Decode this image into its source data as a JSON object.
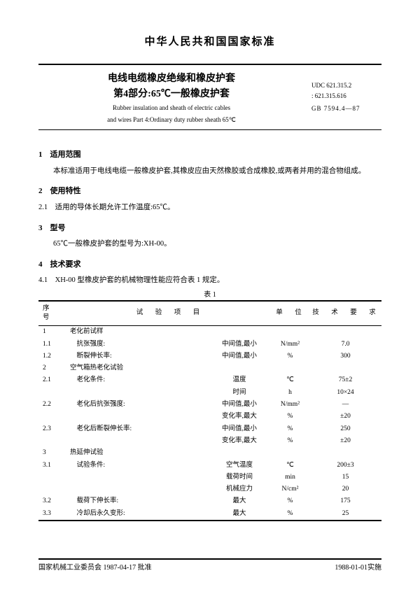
{
  "header": {
    "org": "中华人民共和国国家标准",
    "title_cn_1": "电线电缆橡皮绝缘和橡皮护套",
    "title_cn_2": "第4部分:65℃一般橡皮护套",
    "title_en_1": "Rubber insulation and sheath of electric cables",
    "title_en_2": "and wires Part 4:Ordinary duty rubber sheath 65℃",
    "udc_1": "UDC 621.315.2",
    "udc_2": ": 621.315.616",
    "gb": "GB 7594.4—87"
  },
  "sections": {
    "s1_title": "1　适用范围",
    "s1_para": "本标准适用于电线电缆一般橡皮护套,其橡皮应由天然橡胶或合成橡胶,或两者并用的混合物组成。",
    "s2_title": "2　使用特性",
    "s21": "2.1　适用的导体长期允许工作温度:65℃。",
    "s3_title": "3　型号",
    "s3_para": "65℃一般橡皮护套的型号为:XH-00。",
    "s4_title": "4　技术要求",
    "s41": "4.1　XH-00 型橡皮护套的机械物理性能应符合表 1 规定。",
    "table_caption": "表 1"
  },
  "table": {
    "h1": "序　号",
    "h2": "试　验　项　目",
    "h3": "单　位",
    "h4": "技　术　要　求",
    "rows": [
      {
        "n": "1",
        "item": "老化前试样",
        "mid": "",
        "unit": "",
        "req": ""
      },
      {
        "n": "1.1",
        "item": "　抗张强度:",
        "mid": "中间值,最小",
        "unit": "N/mm²",
        "req": "7.0"
      },
      {
        "n": "1.2",
        "item": "　断裂伸长率:",
        "mid": "中间值,最小",
        "unit": "%",
        "req": "300"
      },
      {
        "n": "2",
        "item": "空气箱热老化试验",
        "mid": "",
        "unit": "",
        "req": ""
      },
      {
        "n": "2.1",
        "item": "　老化条件:",
        "mid": "温度",
        "unit": "℃",
        "req": "75±2"
      },
      {
        "n": "",
        "item": "",
        "mid": "时间",
        "unit": "h",
        "req": "10×24"
      },
      {
        "n": "2.2",
        "item": "　老化后抗张强度:",
        "mid": "中间值,最小",
        "unit": "N/mm²",
        "req": "—"
      },
      {
        "n": "",
        "item": "",
        "mid": "变化率,最大",
        "unit": "%",
        "req": "±20"
      },
      {
        "n": "2.3",
        "item": "　老化后断裂伸长率:",
        "mid": "中间值,最小",
        "unit": "%",
        "req": "250"
      },
      {
        "n": "",
        "item": "",
        "mid": "变化率,最大",
        "unit": "%",
        "req": "±20"
      },
      {
        "n": "3",
        "item": "热延伸试验",
        "mid": "",
        "unit": "",
        "req": ""
      },
      {
        "n": "3.1",
        "item": "　试验条件:",
        "mid": "空气温度",
        "unit": "℃",
        "req": "200±3"
      },
      {
        "n": "",
        "item": "",
        "mid": "载荷时间",
        "unit": "min",
        "req": "15"
      },
      {
        "n": "",
        "item": "",
        "mid": "机械应力",
        "unit": "N/cm²",
        "req": "20"
      },
      {
        "n": "3.2",
        "item": "　载荷下伸长率:",
        "mid": "最大",
        "unit": "%",
        "req": "175"
      },
      {
        "n": "3.3",
        "item": "　冷却后永久变形:",
        "mid": "最大",
        "unit": "%",
        "req": "25"
      }
    ]
  },
  "footer": {
    "left": "国家机械工业委员会 1987-04-17 批准",
    "right": "1988-01-01实施"
  }
}
